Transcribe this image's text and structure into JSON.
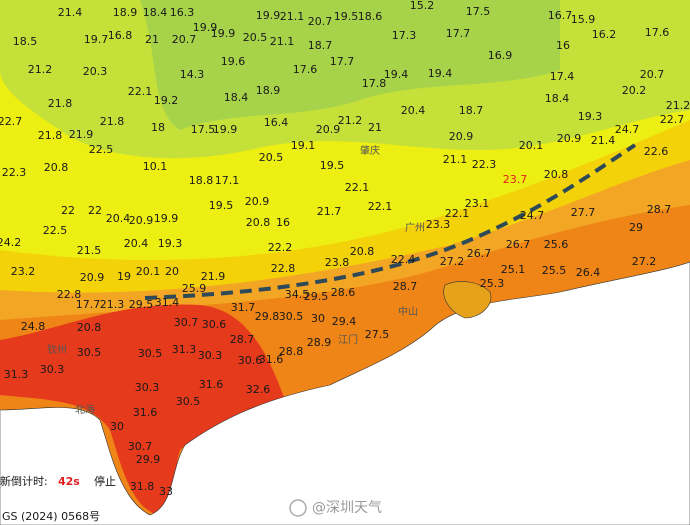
{
  "map": {
    "temperature_labels": [
      "21.4",
      "18.9",
      "18.4",
      "16.3",
      "19.9",
      "19.9",
      "21.1",
      "20.7",
      "19.5",
      "18.6",
      "15.2",
      "17.5",
      "16.7",
      "15.9",
      "17.6",
      "18.5",
      "19.7",
      "16.8",
      "21",
      "20.7",
      "19.9",
      "20.5",
      "21.1",
      "18.7",
      "17.3",
      "17.7",
      "16",
      "16.2",
      "21.2",
      "20.3",
      "14.3",
      "19.6",
      "17.6",
      "17.7",
      "17.8",
      "19.4",
      "19.4",
      "16.9",
      "17.4",
      "20.7",
      "21.8",
      "22.1",
      "19.2",
      "18.4",
      "18.9",
      "21.2",
      "21",
      "20.4",
      "18.7",
      "18.4",
      "19.3",
      "20.2",
      "21.2",
      "22.7",
      "21.8",
      "21.9",
      "21.8",
      "18",
      "17.5",
      "19.9",
      "16.4",
      "20.9",
      "20.9",
      "20.9",
      "21.4",
      "24.7",
      "22.7",
      "22.3",
      "20.8",
      "22.5",
      "10.1",
      "18.8",
      "17.1",
      "20.5",
      "19.1",
      "19.5",
      "22.1",
      "21.1",
      "22.3",
      "20.1",
      "20.8",
      "22.6",
      "22",
      "22",
      "20.4",
      "20.9",
      "19.9",
      "19.5",
      "20.9",
      "20.8",
      "16",
      "21.7",
      "22.1",
      "22.1",
      "23.1",
      "24.7",
      "27.7",
      "28.7",
      "22.5",
      "24.2",
      "21.5",
      "20.4",
      "19.3",
      "22.2",
      "20.8",
      "22.4",
      "23.3",
      "26.7",
      "26.7",
      "25.6",
      "29",
      "23.2",
      "20.9",
      "19",
      "20.1",
      "20",
      "21.9",
      "22.8",
      "23.8",
      "27.2",
      "25.1",
      "25.5",
      "26.4",
      "27.2",
      "22.8",
      "17.7",
      "21.3",
      "29.5",
      "31.4",
      "25.9",
      "31.7",
      "34.5",
      "29.5",
      "28.6",
      "28.7",
      "25.3",
      "24.8",
      "20.8",
      "30.7",
      "30.6",
      "29.8",
      "30.5",
      "30",
      "29.4",
      "27.5",
      "30.5",
      "31.3",
      "28.7",
      "28.8",
      "28.9",
      "31.3",
      "30.3",
      "30.5",
      "30.3",
      "30.6",
      "31.6",
      "31.6",
      "32.6",
      "30.3",
      "30.5",
      "31.6",
      "30",
      "30.7",
      "29.9",
      "31.8",
      "33"
    ],
    "highlight_label": "23.7",
    "city_labels": [
      "钦州",
      "北海",
      "中山",
      "江门",
      "广州",
      "肇庆"
    ]
  },
  "footer": {
    "refresh_label": "新倒计时:",
    "countdown": "42s",
    "stop": "停止",
    "license": "GS (2024) 0568号"
  },
  "watermark": "@深圳天气"
}
